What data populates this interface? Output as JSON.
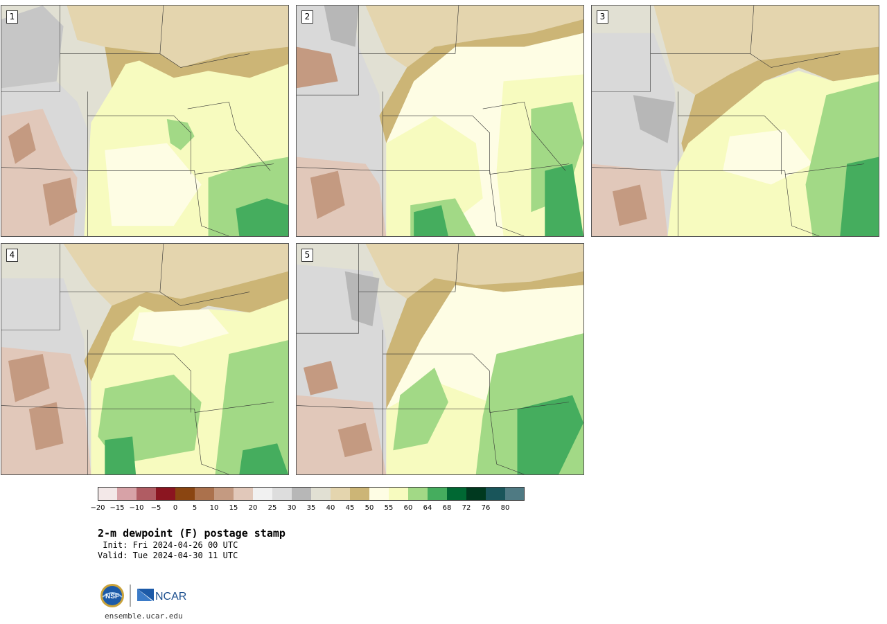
{
  "panels": [
    {
      "label": "1"
    },
    {
      "label": "2"
    },
    {
      "label": "3"
    },
    {
      "label": "4"
    },
    {
      "label": "5"
    }
  ],
  "colorbar": {
    "colors": [
      "#f3e8e8",
      "#d7a2a7",
      "#b05c63",
      "#8b1520",
      "#8a4511",
      "#ab714c",
      "#c49a81",
      "#e1c8ba",
      "#f1f1f1",
      "#dddddd",
      "#b7b7b7",
      "#e1e0d3",
      "#e4d5ae",
      "#ccb576",
      "#fefde4",
      "#f7fbbf",
      "#a2d986",
      "#45ad5e",
      "#006833",
      "#00391f",
      "#19555a",
      "#4f7a83"
    ],
    "tick_labels": [
      "−20",
      "−15",
      "−10",
      "−5",
      "0",
      "5",
      "10",
      "15",
      "20",
      "25",
      "30",
      "35",
      "40",
      "45",
      "50",
      "55",
      "60",
      "64",
      "68",
      "72",
      "76",
      "80"
    ]
  },
  "title": "2-m dewpoint (F) postage stamp",
  "init": " Init: Fri 2024-04-26 00 UTC",
  "valid": "Valid: Tue 2024-04-30 11 UTC",
  "logo": {
    "nsf": "NSF",
    "ncar": "NCAR"
  },
  "site": "ensemble.ucar.edu"
}
